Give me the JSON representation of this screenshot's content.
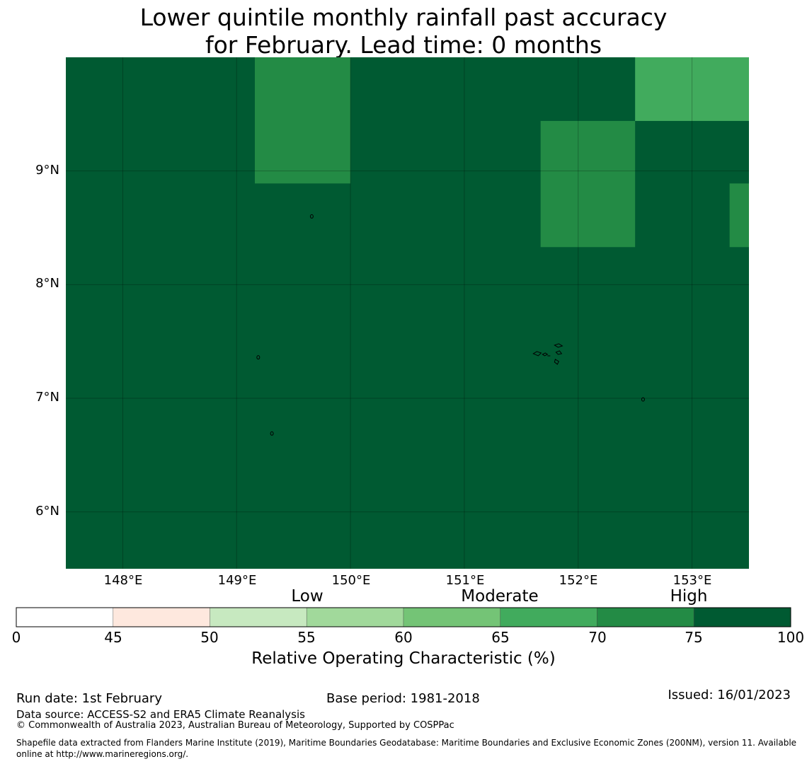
{
  "title": {
    "line1": "Lower quintile monthly rainfall past accuracy",
    "line2": "for February. Lead time: 0 months"
  },
  "map": {
    "lon_range": [
      147.5,
      153.5
    ],
    "lat_range": [
      5.5,
      10.0
    ],
    "x_ticks": [
      "148°E",
      "149°E",
      "150°E",
      "151°E",
      "152°E",
      "153°E"
    ],
    "x_tick_values": [
      148,
      149,
      150,
      151,
      152,
      153
    ],
    "y_ticks": [
      "9°N",
      "8°N",
      "7°N",
      "6°N"
    ],
    "y_tick_values": [
      9,
      8,
      7,
      6
    ],
    "background_class": "75-100",
    "cells": [
      {
        "lon": [
          149.16,
          150.0
        ],
        "lat": [
          8.89,
          10.0
        ],
        "class": "70-75"
      },
      {
        "lon": [
          151.67,
          152.5
        ],
        "lat": [
          8.33,
          9.44
        ],
        "class": "70-75"
      },
      {
        "lon": [
          152.5,
          153.5
        ],
        "lat": [
          9.44,
          10.0
        ],
        "class": "65-70"
      },
      {
        "lon": [
          153.33,
          153.5
        ],
        "lat": [
          8.33,
          8.89
        ],
        "class": "70-75"
      }
    ],
    "islands": [
      {
        "name": "islet-a",
        "lon": 149.66,
        "lat": 8.6
      },
      {
        "name": "islet-b",
        "lon": 149.19,
        "lat": 7.36
      },
      {
        "name": "islet-c",
        "lon": 149.31,
        "lat": 6.69
      },
      {
        "name": "chuuk-lagoon",
        "lon": 151.78,
        "lat": 7.38
      },
      {
        "name": "islet-d",
        "lon": 152.57,
        "lat": 6.99
      }
    ]
  },
  "colorbar": {
    "categories": [
      "Low",
      "Moderate",
      "High"
    ],
    "ticks": [
      "0",
      "45",
      "50",
      "55",
      "60",
      "65",
      "70",
      "75",
      "100"
    ],
    "colors": [
      "#ffffff",
      "#fee8de",
      "#c7e9c0",
      "#a1d99b",
      "#74c476",
      "#41ab5d",
      "#238b45",
      "#005a32"
    ],
    "label": "Relative Operating Characteristic (%)"
  },
  "class_colors": {
    "65-70": "#41ab5d",
    "70-75": "#238b45",
    "75-100": "#005a32"
  },
  "footer": {
    "run_date": "Run date: 1st February",
    "base_period": "Base period: 1981-2018",
    "issued": "Issued: 16/01/2023",
    "data_source": "Data source: ACCESS-S2 and ERA5 Climate Reanalysis",
    "copyright": "© Commonwealth of Australia 2023, Australian Bureau of Meteorology, Supported by COSPPac",
    "shapefile": "Shapefile data extracted from Flanders Marine Institute (2019), Maritime Boundaries Geodatabase: Maritime Boundaries and Exclusive Economic Zones (200NM), version 11. Available online at http://www.marineregions.org/."
  }
}
